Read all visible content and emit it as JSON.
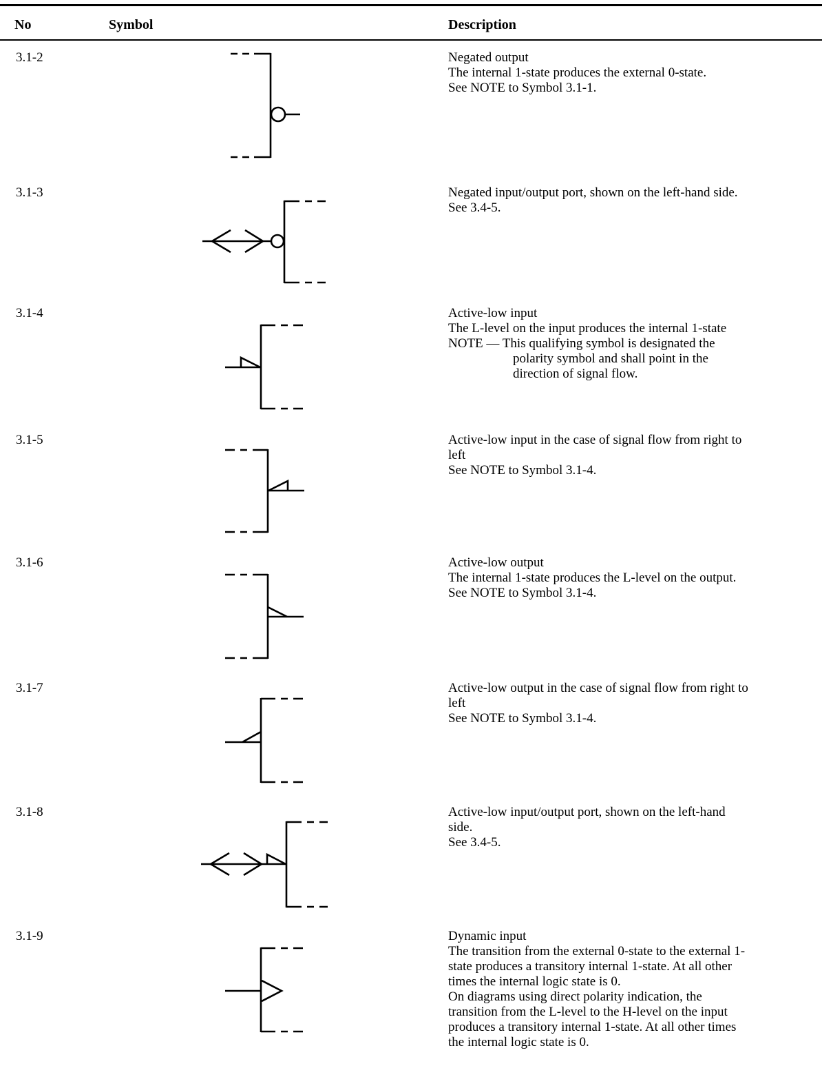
{
  "header": {
    "no": "No",
    "symbol": "Symbol",
    "description": "Description"
  },
  "rows": [
    {
      "no": "3.1-2",
      "lines": [
        "Negated output",
        "The internal 1-state produces the external 0-state.",
        "See NOTE to Symbol 3.1-1."
      ]
    },
    {
      "no": "3.1-3",
      "lines": [
        "Negated input/output port, shown on the left-hand side.",
        "See 3.4-5."
      ]
    },
    {
      "no": "3.1-4",
      "lines": [
        "Active-low input",
        "The L-level on the input produces the internal 1-state"
      ],
      "note": {
        "lead": "NOTE —  This qualifying symbol is designated the",
        "cont": [
          "polarity symbol and shall point in the",
          "direction of signal flow."
        ]
      }
    },
    {
      "no": "3.1-5",
      "lines": [
        "Active-low input in the case of signal flow from right to",
        "left",
        "See NOTE to Symbol 3.1-4."
      ]
    },
    {
      "no": "3.1-6",
      "lines": [
        "Active-low output",
        "The internal 1-state produces the L-level on the output.",
        "See NOTE to Symbol 3.1-4."
      ]
    },
    {
      "no": "3.1-7",
      "lines": [
        "Active-low output in the case of signal flow from right to",
        "left",
        "See NOTE to Symbol 3.1-4."
      ]
    },
    {
      "no": "3.1-8",
      "lines": [
        "Active-low input/output port, shown on the left-hand",
        "side.",
        "See 3.4-5."
      ]
    },
    {
      "no": "3.1-9",
      "lines": [
        "Dynamic input",
        "The transition from the external 0-state to the external 1-",
        "state produces a transitory internal 1-state. At all other",
        "times the internal logic state is 0.",
        "On diagrams using direct polarity indication, the",
        "transition from the L-level to the H-level on the input",
        "produces a transitory internal 1-state. At all other times",
        "the internal logic state is 0."
      ]
    }
  ]
}
